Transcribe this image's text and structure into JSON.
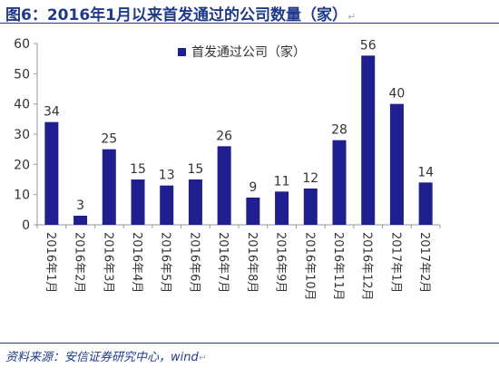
{
  "title": "图6：2016年1月以来首发通过的公司数量（家）",
  "source": "资料来源：安信证券研究中心，wind",
  "paragraph_mark": "↵",
  "colors": {
    "bar": "#1f1f8f",
    "title": "#1f3a8a",
    "axis": "#999999",
    "text": "#333333"
  },
  "chart_data": {
    "type": "bar",
    "categories": [
      "2016年1月",
      "2016年2月",
      "2016年3月",
      "2016年4月",
      "2016年5月",
      "2016年6月",
      "2016年7月",
      "2016年8月",
      "2016年9月",
      "2016年10月",
      "2016年11月",
      "2016年12月",
      "2017年1月",
      "2017年2月"
    ],
    "series": [
      {
        "name": "首发通过公司（家）",
        "values": [
          34,
          3,
          25,
          15,
          13,
          15,
          26,
          9,
          11,
          12,
          28,
          56,
          40,
          14
        ]
      }
    ],
    "title": "",
    "xlabel": "",
    "ylabel": "",
    "ylim": [
      0,
      60
    ],
    "yticks": [
      0,
      10,
      20,
      30,
      40,
      50,
      60
    ],
    "grid": false,
    "legend_position": "top-center",
    "data_labels": true
  }
}
